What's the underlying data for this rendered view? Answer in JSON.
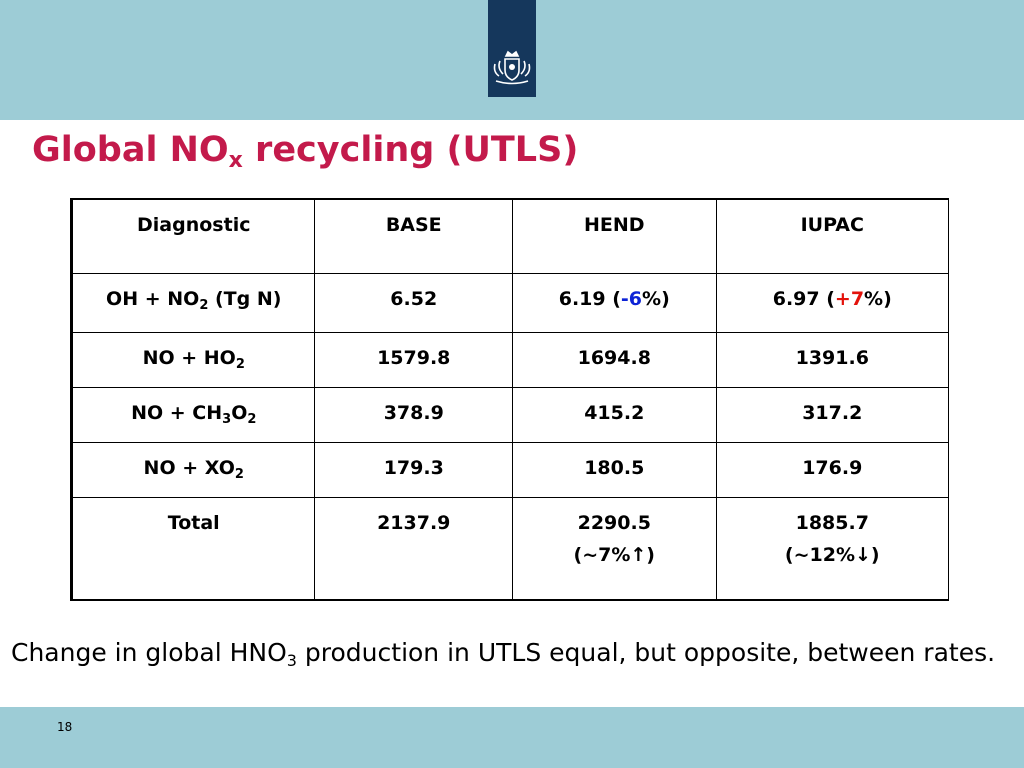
{
  "colors": {
    "band": "#9dccd6",
    "logo_bg": "#15375c",
    "title": "#c31a4b",
    "negative": "#0d23d6",
    "positive": "#e3120b"
  },
  "logo": {
    "icon": "royal-coat-of-arms-icon"
  },
  "title": {
    "main": "Global NO",
    "sub": "x",
    "rest": " recycling (UTLS)"
  },
  "table": {
    "headers": [
      "Diagnostic",
      "BASE",
      "HEND",
      "IUPAC"
    ],
    "rows": [
      {
        "diagnostic": {
          "a": "OH + NO",
          "sub": "2",
          "b": " (Tg N)"
        },
        "base": "6.52",
        "hend": {
          "value": "6.19 (",
          "change": "-6",
          "end": "%)"
        },
        "iupac": {
          "value": "6.97 (",
          "change": "+7",
          "end": "%)"
        }
      },
      {
        "diagnostic": {
          "a": "NO + HO",
          "sub": "2"
        },
        "base": "1579.8",
        "hend": "1694.8",
        "iupac": "1391.6"
      },
      {
        "diagnostic": {
          "a": "NO + CH",
          "sub1": "3",
          "b": "O",
          "sub2": "2"
        },
        "base": "378.9",
        "hend": "415.2",
        "iupac": "317.2"
      },
      {
        "diagnostic": {
          "a": "NO + XO",
          "sub": "2"
        },
        "base": "179.3",
        "hend": "180.5",
        "iupac": "176.9"
      },
      {
        "diagnostic": "Total",
        "base": "2137.9",
        "hend": {
          "value": "2290.5",
          "change": "(~7%↑)"
        },
        "iupac": {
          "value": "1885.7",
          "change": "(~12%↓)"
        }
      }
    ]
  },
  "note": {
    "a": "Change in global HNO",
    "sub": "3",
    "b": " production in UTLS equal, but opposite, between rates."
  },
  "page_number": "18"
}
